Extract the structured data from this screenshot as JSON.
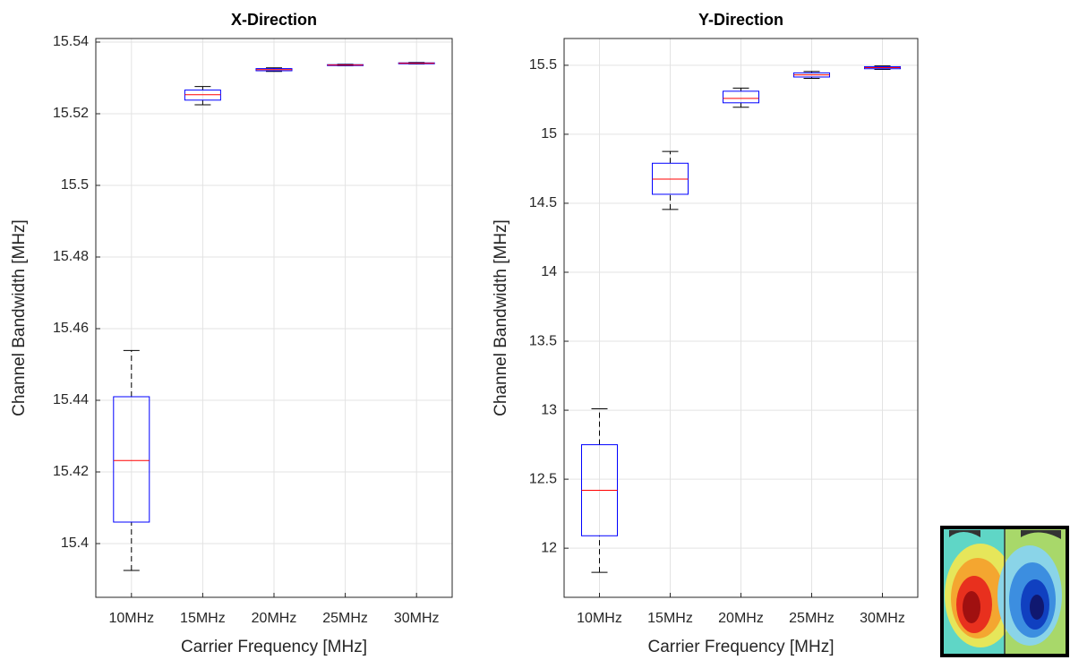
{
  "chart_data": [
    {
      "type": "box",
      "title": "X-Direction",
      "xlabel": "Carrier Frequency [MHz]",
      "ylabel": "Channel Bandwidth [MHz]",
      "categories": [
        "10MHz",
        "15MHz",
        "20MHz",
        "25MHz",
        "30MHz"
      ],
      "stats": [
        {
          "min": 15.3925,
          "q1": 15.406,
          "median": 15.4232,
          "q3": 15.441,
          "max": 15.4539
        },
        {
          "min": 15.5225,
          "q1": 15.5238,
          "median": 15.5253,
          "q3": 15.5266,
          "max": 15.5276
        },
        {
          "min": 15.5318,
          "q1": 15.532,
          "median": 15.5323,
          "q3": 15.5326,
          "max": 15.5328
        },
        {
          "min": 15.5334,
          "q1": 15.5335,
          "median": 15.5336,
          "q3": 15.5337,
          "max": 15.5338
        },
        {
          "min": 15.5339,
          "q1": 15.534,
          "median": 15.5341,
          "q3": 15.5342,
          "max": 15.5343
        }
      ],
      "ylim": [
        15.385,
        15.541
      ],
      "yticks": [
        15.4,
        15.42,
        15.44,
        15.46,
        15.48,
        15.5,
        15.52,
        15.54
      ],
      "box_color": "#0000ff",
      "median_color": "#ff0000",
      "whisker_color": "#000000",
      "grid": true
    },
    {
      "type": "box",
      "title": "Y-Direction",
      "xlabel": "Carrier Frequency [MHz]",
      "ylabel": "Channel Bandwidth [MHz]",
      "categories": [
        "10MHz",
        "15MHz",
        "20MHz",
        "25MHz",
        "30MHz"
      ],
      "stats": [
        {
          "min": 11.825,
          "q1": 12.09,
          "median": 12.42,
          "q3": 12.75,
          "max": 13.01
        },
        {
          "min": 14.455,
          "q1": 14.565,
          "median": 14.675,
          "q3": 14.79,
          "max": 14.875
        },
        {
          "min": 15.196,
          "q1": 15.228,
          "median": 15.26,
          "q3": 15.312,
          "max": 15.335
        },
        {
          "min": 15.405,
          "q1": 15.415,
          "median": 15.43,
          "q3": 15.445,
          "max": 15.455
        },
        {
          "min": 15.47,
          "q1": 15.475,
          "median": 15.483,
          "q3": 15.49,
          "max": 15.495
        }
      ],
      "ylim": [
        11.644,
        15.694
      ],
      "yticks": [
        12,
        12.5,
        13,
        13.5,
        14,
        14.5,
        15,
        15.5
      ],
      "box_color": "#0000ff",
      "median_color": "#ff0000",
      "whisker_color": "#000000",
      "grid": true
    }
  ]
}
